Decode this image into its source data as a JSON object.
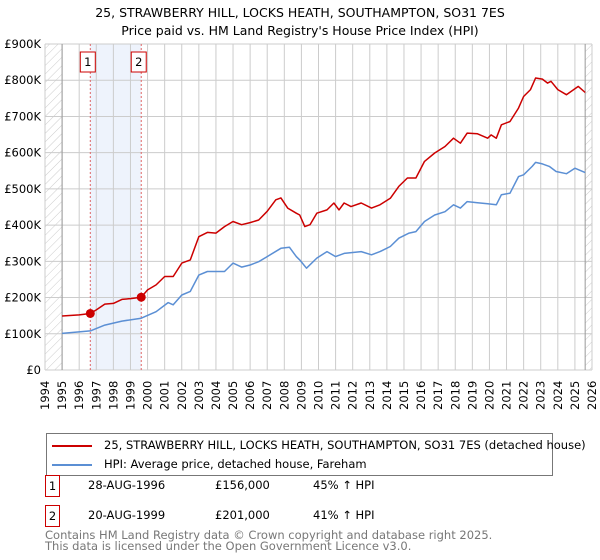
{
  "chart_data": {
    "type": "line",
    "title": "25, STRAWBERRY HILL, LOCKS HEATH, SOUTHAMPTON, SO31 7ES",
    "subtitle": "Price paid vs. HM Land Registry's House Price Index (HPI)",
    "xlabel": "",
    "ylabel": "",
    "xlim": [
      1994,
      2026
    ],
    "ylim": [
      0,
      900000
    ],
    "x_ticks": [
      "1994",
      "1995",
      "1996",
      "1997",
      "1998",
      "1999",
      "2000",
      "2001",
      "2002",
      "2003",
      "2004",
      "2005",
      "2006",
      "2007",
      "2008",
      "2009",
      "2010",
      "2011",
      "2012",
      "2013",
      "2014",
      "2015",
      "2016",
      "2017",
      "2018",
      "2019",
      "2020",
      "2021",
      "2022",
      "2023",
      "2024",
      "2025",
      "2026"
    ],
    "y_ticks": [
      {
        "value": 0,
        "label": "£0"
      },
      {
        "value": 100000,
        "label": "£100K"
      },
      {
        "value": 200000,
        "label": "£200K"
      },
      {
        "value": 300000,
        "label": "£300K"
      },
      {
        "value": 400000,
        "label": "£400K"
      },
      {
        "value": 500000,
        "label": "£500K"
      },
      {
        "value": 600000,
        "label": "£600K"
      },
      {
        "value": 700000,
        "label": "£700K"
      },
      {
        "value": 800000,
        "label": "£800K"
      },
      {
        "value": 900000,
        "label": "£900K"
      }
    ],
    "grid": true,
    "data_range": [
      1995,
      2025.6
    ],
    "shaded_period": [
      1996.65,
      1999.63
    ],
    "series": [
      {
        "name": "25, STRAWBERRY HILL, LOCKS HEATH, SOUTHAMPTON, SO31 7ES (detached house)",
        "color": "#cc0000",
        "x": [
          1995,
          1996,
          1996.65,
          1997,
          1997.5,
          1998,
          1998.5,
          1999,
          1999.63,
          2000,
          2000.5,
          2001,
          2001.5,
          2002,
          2002.5,
          2003,
          2003.5,
          2004,
          2004.5,
          2005,
          2005.5,
          2006,
          2006.5,
          2007,
          2007.5,
          2007.8,
          2008.2,
          2008.7,
          2008.9,
          2009.2,
          2009.5,
          2009.9,
          2010.5,
          2010.9,
          2011.2,
          2011.5,
          2011.9,
          2012.5,
          2013.1,
          2013.6,
          2014.2,
          2014.7,
          2015.2,
          2015.7,
          2016.2,
          2016.8,
          2017.4,
          2017.9,
          2018.3,
          2018.7,
          2019.3,
          2019.9,
          2020.1,
          2020.4,
          2020.7,
          2021.2,
          2021.7,
          2022.0,
          2022.4,
          2022.7,
          2023.1,
          2023.4,
          2023.6,
          2024.0,
          2024.5,
          2025.2,
          2025.6
        ],
        "y": [
          149000,
          152000,
          156000,
          166000,
          182000,
          184000,
          195000,
          197000,
          201000,
          221000,
          235000,
          258000,
          258000,
          295000,
          304000,
          368000,
          380000,
          378000,
          396000,
          410000,
          401000,
          407000,
          414000,
          438000,
          470000,
          475000,
          447000,
          433000,
          428000,
          396000,
          401000,
          433000,
          442000,
          461000,
          442000,
          461000,
          451000,
          461000,
          447000,
          456000,
          474000,
          507000,
          530000,
          530000,
          576000,
          599000,
          617000,
          640000,
          626000,
          654000,
          652000,
          640000,
          649000,
          640000,
          677000,
          686000,
          723000,
          755000,
          774000,
          806000,
          803000,
          792000,
          797000,
          774000,
          760000,
          783000,
          766000
        ]
      },
      {
        "name": "HPI: Average price, detached house, Fareham",
        "color": "#5b8fd4",
        "x": [
          1995,
          1996.65,
          1997.5,
          1998.5,
          1999.63,
          2000.5,
          2001.2,
          2001.5,
          2002,
          2002.5,
          2003,
          2003.5,
          2004.5,
          2005,
          2005.5,
          2006,
          2006.5,
          2007,
          2007.8,
          2008.3,
          2008.7,
          2008.9,
          2009.3,
          2009.9,
          2010.5,
          2011,
          2011.5,
          2012.5,
          2013.1,
          2013.6,
          2014.2,
          2014.7,
          2015.3,
          2015.7,
          2016.2,
          2016.8,
          2017.4,
          2017.9,
          2018.3,
          2018.7,
          2019.3,
          2019.9,
          2020.4,
          2020.7,
          2021.2,
          2021.7,
          2022.0,
          2022.5,
          2022.7,
          2023.1,
          2023.5,
          2023.9,
          2024.5,
          2025.0,
          2025.6
        ],
        "y": [
          101000,
          108000,
          124000,
          135000,
          143000,
          161000,
          186000,
          180000,
          207000,
          217000,
          262000,
          272000,
          272000,
          295000,
          284000,
          290000,
          299000,
          313000,
          336000,
          339000,
          313000,
          304000,
          281000,
          309000,
          327000,
          313000,
          322000,
          327000,
          318000,
          327000,
          341000,
          364000,
          378000,
          382000,
          410000,
          428000,
          437000,
          456000,
          447000,
          465000,
          462000,
          459000,
          456000,
          484000,
          488000,
          534000,
          539000,
          562000,
          573000,
          569000,
          562000,
          548000,
          542000,
          557000,
          545000
        ]
      }
    ],
    "sales": [
      {
        "label": "1",
        "x": 1996.65,
        "price": 156000,
        "date": "28-AUG-1996",
        "price_text": "£156,000",
        "hpi_text": "45% ↑ HPI"
      },
      {
        "label": "2",
        "x": 1999.63,
        "price": 201000,
        "date": "20-AUG-1999",
        "price_text": "£201,000",
        "hpi_text": "41% ↑ HPI"
      }
    ],
    "legend_placement": "below"
  },
  "footer": {
    "line1": "Contains HM Land Registry data © Crown copyright and database right 2025.",
    "line2": "This data is licensed under the Open Government Licence v3.0."
  }
}
